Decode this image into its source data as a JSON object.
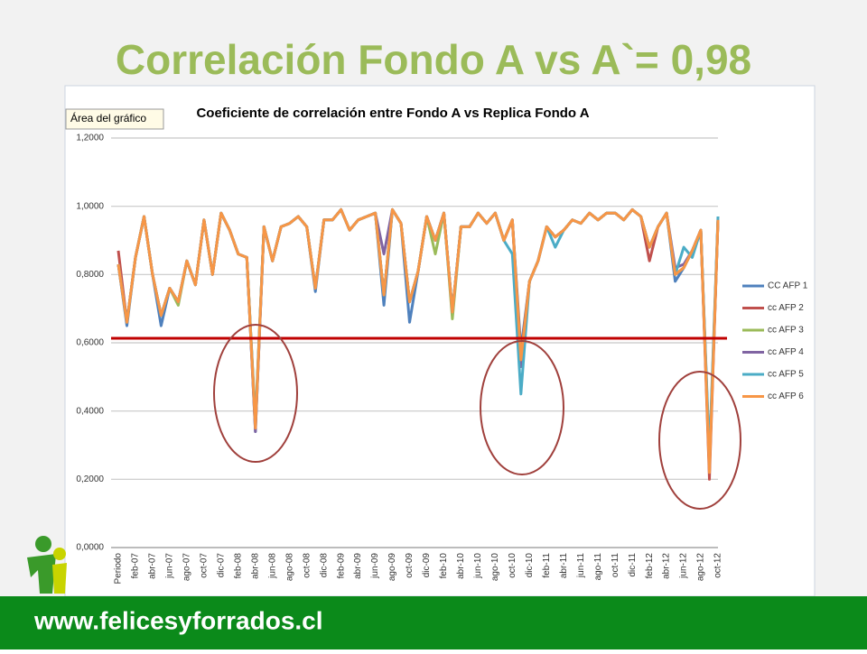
{
  "slide_title": "Correlación Fondo A vs A`= 0,98",
  "footer": "www.felicesyforrados.cl",
  "tooltip": "Área del gráfico",
  "chart_data": {
    "type": "line",
    "title": "Coeficiente de correlación entre Fondo A vs Replica Fondo A",
    "categories": [
      "Periodo",
      null,
      "feb-07",
      null,
      "abr-07",
      null,
      "jun-07",
      null,
      "ago-07",
      null,
      "oct-07",
      null,
      "dic-07",
      null,
      "feb-08",
      null,
      "abr-08",
      null,
      "jun-08",
      null,
      "ago-08",
      null,
      "oct-08",
      null,
      "dic-08",
      null,
      "feb-09",
      null,
      "abr-09",
      null,
      "jun-09",
      null,
      "ago-09",
      null,
      "oct-09",
      null,
      "dic-09",
      null,
      "feb-10",
      null,
      "abr-10",
      null,
      "jun-10",
      null,
      "ago-10",
      null,
      "oct-10",
      null,
      "dic-10",
      null,
      "feb-11",
      null,
      "abr-11",
      null,
      "jun-11",
      null,
      "ago-11",
      null,
      "oct-11",
      null,
      "dic-11",
      null,
      "feb-12",
      null,
      "abr-12",
      null,
      "jun-12",
      null,
      "ago-12",
      null,
      "oct-12"
    ],
    "ylim": [
      0,
      1.2
    ],
    "yticks": [
      {
        "value": 0,
        "label": "0,0000"
      },
      {
        "value": 0.2,
        "label": "0,2000"
      },
      {
        "value": 0.4,
        "label": "0,4000"
      },
      {
        "value": 0.6,
        "label": "0,6000"
      },
      {
        "value": 0.8,
        "label": "0,8000"
      },
      {
        "value": 1,
        "label": "1,0000"
      },
      {
        "value": 1.2,
        "label": "1,2000"
      }
    ],
    "grid": true,
    "legend": "right",
    "series": [
      {
        "name": "CC AFP 1",
        "color": "#4f81bd",
        "values": [
          0.83,
          0.65,
          0.85,
          0.97,
          0.8,
          0.65,
          0.76,
          0.72,
          0.84,
          0.77,
          0.96,
          0.8,
          0.98,
          0.93,
          0.86,
          0.85,
          0.34,
          0.94,
          0.84,
          0.94,
          0.95,
          0.97,
          0.94,
          0.75,
          0.96,
          0.96,
          0.99,
          0.93,
          0.96,
          0.97,
          0.98,
          0.71,
          0.99,
          0.95,
          0.66,
          0.81,
          0.97,
          0.9,
          0.98,
          0.69,
          0.94,
          0.94,
          0.98,
          0.95,
          0.98,
          0.9,
          0.96,
          0.58,
          0.78,
          0.84,
          0.94,
          0.91,
          0.93,
          0.96,
          0.95,
          0.98,
          0.96,
          0.98,
          0.98,
          0.96,
          0.99,
          0.97,
          0.88,
          0.94,
          0.98,
          0.78,
          0.82,
          0.87,
          0.93,
          0.25,
          0.96
        ]
      },
      {
        "name": "cc AFP 2",
        "color": "#c0504d",
        "values": [
          0.87,
          0.66,
          0.85,
          0.97,
          0.8,
          0.68,
          0.76,
          0.72,
          0.84,
          0.77,
          0.96,
          0.8,
          0.98,
          0.93,
          0.86,
          0.85,
          0.36,
          0.94,
          0.84,
          0.94,
          0.95,
          0.97,
          0.94,
          0.76,
          0.96,
          0.96,
          0.99,
          0.93,
          0.96,
          0.97,
          0.98,
          0.74,
          0.99,
          0.95,
          0.72,
          0.81,
          0.97,
          0.9,
          0.98,
          0.69,
          0.94,
          0.94,
          0.98,
          0.95,
          0.98,
          0.9,
          0.96,
          0.56,
          0.78,
          0.84,
          0.94,
          0.91,
          0.93,
          0.96,
          0.95,
          0.98,
          0.96,
          0.98,
          0.98,
          0.96,
          0.99,
          0.97,
          0.84,
          0.94,
          0.98,
          0.8,
          0.82,
          0.87,
          0.93,
          0.2,
          0.96
        ]
      },
      {
        "name": "cc AFP 3",
        "color": "#9bbb59",
        "values": [
          0.83,
          0.66,
          0.85,
          0.97,
          0.8,
          0.68,
          0.76,
          0.71,
          0.84,
          0.77,
          0.96,
          0.8,
          0.98,
          0.93,
          0.86,
          0.85,
          0.37,
          0.94,
          0.84,
          0.94,
          0.95,
          0.97,
          0.94,
          0.76,
          0.96,
          0.96,
          0.99,
          0.93,
          0.96,
          0.97,
          0.98,
          0.74,
          0.99,
          0.95,
          0.72,
          0.81,
          0.97,
          0.86,
          0.98,
          0.67,
          0.94,
          0.94,
          0.98,
          0.95,
          0.98,
          0.9,
          0.96,
          0.54,
          0.78,
          0.84,
          0.94,
          0.91,
          0.93,
          0.96,
          0.95,
          0.98,
          0.96,
          0.98,
          0.98,
          0.96,
          0.99,
          0.97,
          0.88,
          0.94,
          0.98,
          0.8,
          0.82,
          0.87,
          0.93,
          0.24,
          0.96
        ]
      },
      {
        "name": "cc AFP 4",
        "color": "#8064a2",
        "values": [
          0.83,
          0.66,
          0.85,
          0.97,
          0.8,
          0.68,
          0.76,
          0.72,
          0.84,
          0.77,
          0.96,
          0.8,
          0.98,
          0.93,
          0.86,
          0.85,
          0.34,
          0.94,
          0.84,
          0.94,
          0.95,
          0.97,
          0.94,
          0.76,
          0.96,
          0.96,
          0.99,
          0.93,
          0.96,
          0.97,
          0.98,
          0.86,
          0.99,
          0.95,
          0.72,
          0.81,
          0.97,
          0.9,
          0.98,
          0.69,
          0.94,
          0.94,
          0.98,
          0.95,
          0.98,
          0.9,
          0.96,
          0.53,
          0.78,
          0.84,
          0.94,
          0.91,
          0.93,
          0.96,
          0.95,
          0.98,
          0.96,
          0.98,
          0.98,
          0.96,
          0.99,
          0.97,
          0.88,
          0.94,
          0.98,
          0.82,
          0.83,
          0.87,
          0.93,
          0.23,
          0.96
        ]
      },
      {
        "name": "cc AFP 5",
        "color": "#4bacc6",
        "values": [
          0.83,
          0.66,
          0.85,
          0.97,
          0.8,
          0.68,
          0.76,
          0.72,
          0.84,
          0.77,
          0.96,
          0.8,
          0.98,
          0.93,
          0.86,
          0.85,
          0.36,
          0.94,
          0.84,
          0.94,
          0.95,
          0.97,
          0.94,
          0.76,
          0.96,
          0.96,
          0.99,
          0.93,
          0.96,
          0.97,
          0.98,
          0.74,
          0.99,
          0.95,
          0.72,
          0.81,
          0.97,
          0.9,
          0.98,
          0.69,
          0.94,
          0.94,
          0.98,
          0.95,
          0.98,
          0.9,
          0.86,
          0.45,
          0.78,
          0.84,
          0.94,
          0.88,
          0.93,
          0.96,
          0.95,
          0.98,
          0.96,
          0.98,
          0.98,
          0.96,
          0.99,
          0.97,
          0.88,
          0.94,
          0.98,
          0.8,
          0.88,
          0.85,
          0.93,
          0.27,
          0.97
        ]
      },
      {
        "name": "cc AFP 6",
        "color": "#f79646",
        "values": [
          0.83,
          0.66,
          0.85,
          0.97,
          0.8,
          0.68,
          0.76,
          0.72,
          0.84,
          0.77,
          0.96,
          0.8,
          0.98,
          0.93,
          0.86,
          0.85,
          0.35,
          0.94,
          0.84,
          0.94,
          0.95,
          0.97,
          0.94,
          0.76,
          0.96,
          0.96,
          0.99,
          0.93,
          0.96,
          0.97,
          0.98,
          0.74,
          0.99,
          0.95,
          0.72,
          0.81,
          0.97,
          0.9,
          0.98,
          0.69,
          0.94,
          0.94,
          0.98,
          0.95,
          0.98,
          0.9,
          0.96,
          0.55,
          0.78,
          0.84,
          0.94,
          0.91,
          0.93,
          0.96,
          0.95,
          0.98,
          0.96,
          0.98,
          0.98,
          0.96,
          0.99,
          0.97,
          0.88,
          0.94,
          0.98,
          0.8,
          0.82,
          0.87,
          0.93,
          0.22,
          0.96
        ]
      }
    ]
  }
}
